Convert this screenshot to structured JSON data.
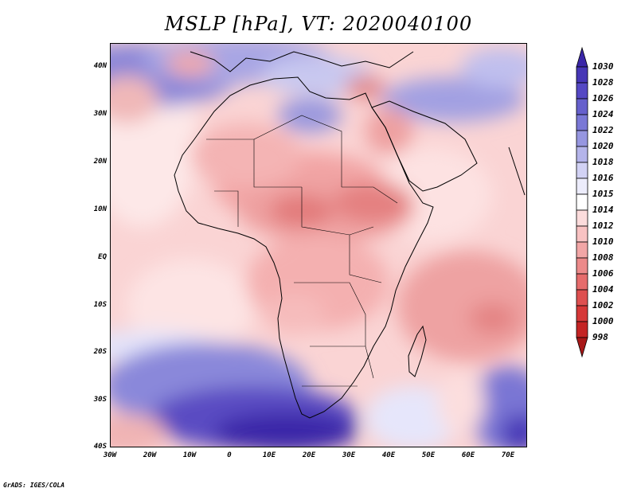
{
  "title": "MSLP [hPa], VT: 2020040100",
  "credit": "GrADS: IGES/COLA",
  "map": {
    "lon_range": [
      -30,
      76
    ],
    "lat_range": [
      -40,
      45
    ],
    "x_ticks": [
      "30W",
      "20W",
      "10W",
      "0",
      "10E",
      "20E",
      "30E",
      "40E",
      "50E",
      "60E",
      "70E"
    ],
    "y_ticks": [
      "40N",
      "30N",
      "20N",
      "10N",
      "EQ",
      "10S",
      "20S",
      "30S",
      "40S"
    ]
  },
  "colorbar": {
    "levels": [
      "1030",
      "1028",
      "1026",
      "1024",
      "1022",
      "1020",
      "1018",
      "1016",
      "1015",
      "1014",
      "1012",
      "1010",
      "1008",
      "1006",
      "1004",
      "1002",
      "1000",
      "998"
    ],
    "colors": [
      "#3a26a8",
      "#4636b6",
      "#5548c4",
      "#6660cc",
      "#7a78d6",
      "#9696e0",
      "#b4b4ea",
      "#d2d2f4",
      "#ececfb",
      "#ffffff",
      "#fcdcdc",
      "#f8c2c2",
      "#f2a6a6",
      "#ec8a8a",
      "#e66c6c",
      "#de5050",
      "#d63838",
      "#c42424",
      "#a81818"
    ]
  }
}
